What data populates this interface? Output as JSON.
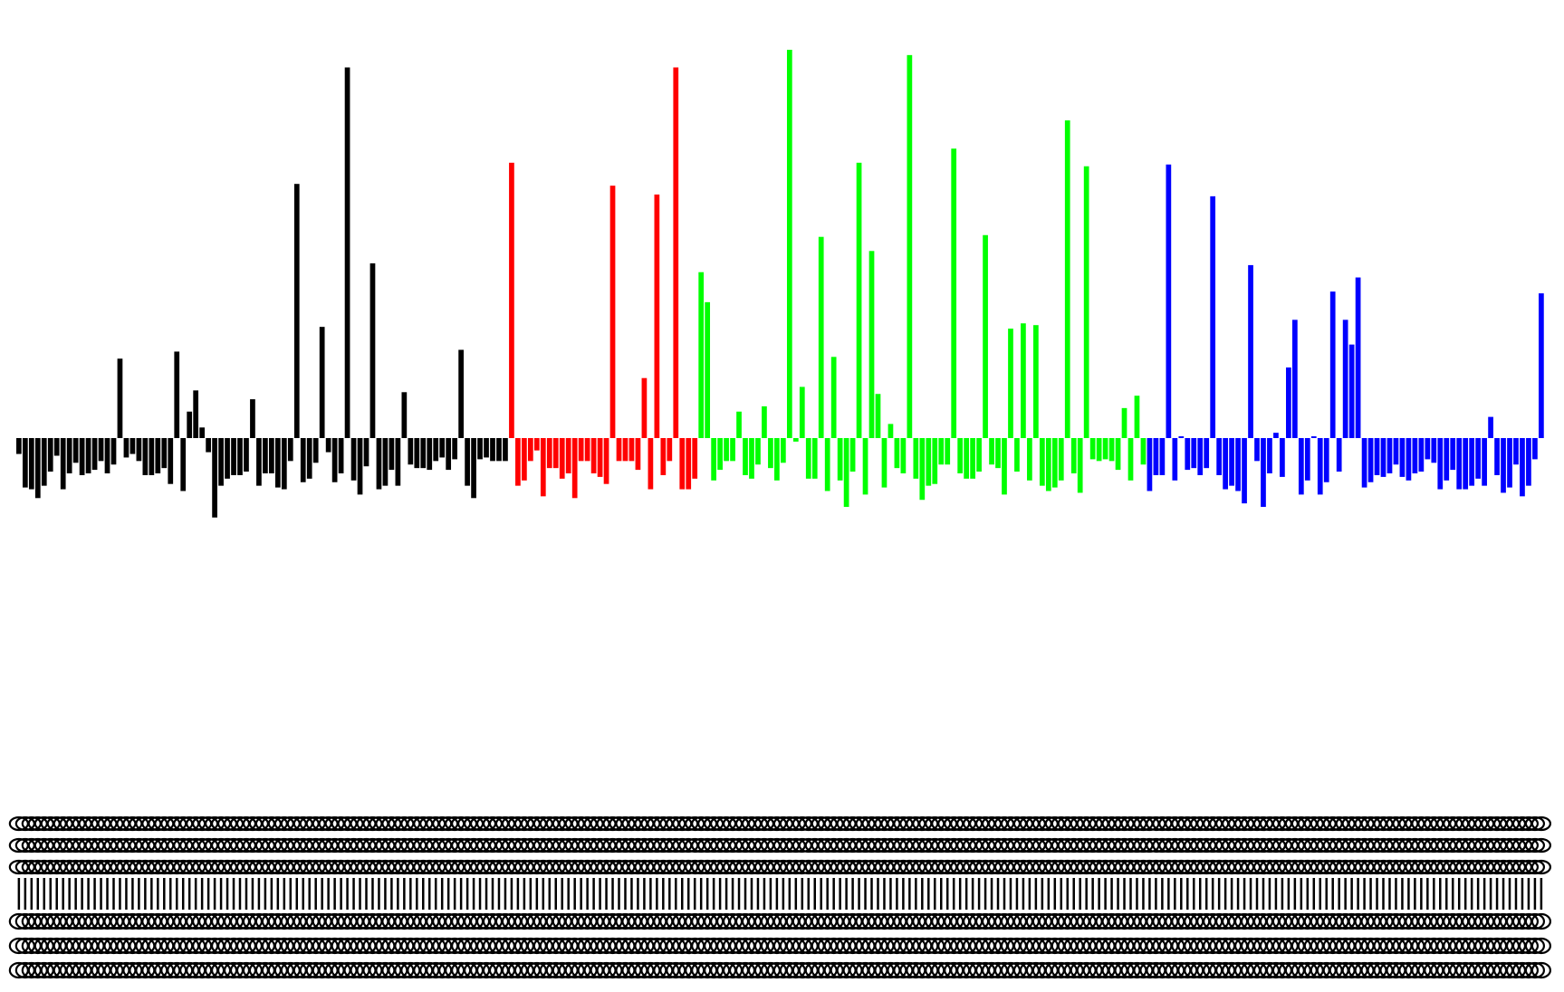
{
  "chart_data": {
    "type": "bar",
    "title": "",
    "xlabel": "",
    "ylabel": "",
    "ylim": [
      -0.45,
      2.1
    ],
    "grid": false,
    "legend": "none",
    "tick_labels_legible": false,
    "group_colors": [
      "#000000",
      "#ff0000",
      "#00ff00",
      "#0000ff"
    ],
    "series": [
      {
        "color": "#000000",
        "values": [
          -0.09,
          -0.28,
          -0.29,
          -0.34,
          -0.27,
          -0.19,
          -0.1,
          -0.29,
          -0.2,
          -0.14,
          -0.21,
          -0.2,
          -0.18,
          -0.13,
          -0.2,
          -0.15,
          0.45,
          -0.11,
          -0.09,
          -0.13,
          -0.21,
          -0.21,
          -0.2,
          -0.17,
          -0.26,
          0.49,
          -0.3,
          0.15,
          0.27,
          0.06,
          -0.08,
          -0.45,
          -0.27,
          -0.23,
          -0.21,
          -0.21,
          -0.19,
          0.22,
          -0.27,
          -0.2,
          -0.2,
          -0.28,
          -0.29,
          -0.13,
          1.44,
          -0.25,
          -0.23,
          -0.14,
          0.63,
          -0.08,
          -0.25,
          -0.2,
          2.1,
          -0.24,
          -0.32,
          -0.16,
          0.99,
          -0.29,
          -0.27,
          -0.18,
          -0.27,
          0.26,
          -0.15,
          -0.17,
          -0.17,
          -0.18,
          -0.13,
          -0.11,
          -0.18,
          -0.12,
          0.5,
          -0.27,
          -0.34,
          -0.12,
          -0.11,
          -0.13,
          -0.13,
          -0.13
        ],
        "category_labels": []
      },
      {
        "color": "#ff0000",
        "values": [
          1.56,
          -0.27,
          -0.24,
          -0.13,
          -0.07,
          -0.33,
          -0.17,
          -0.17,
          -0.23,
          -0.2,
          -0.34,
          -0.13,
          -0.13,
          -0.2,
          -0.22,
          -0.26,
          1.43,
          -0.13,
          -0.13,
          -0.13,
          -0.18,
          0.34,
          -0.29,
          1.38,
          -0.21,
          -0.13,
          2.1,
          -0.29,
          -0.29,
          -0.23
        ],
        "category_labels": []
      },
      {
        "color": "#00ff00",
        "values": [
          0.94,
          0.77,
          -0.24,
          -0.18,
          -0.13,
          -0.13,
          0.15,
          -0.21,
          -0.23,
          -0.15,
          0.18,
          -0.17,
          -0.24,
          -0.14,
          2.2,
          -0.02,
          0.29,
          -0.23,
          -0.23,
          1.14,
          -0.3,
          0.46,
          -0.24,
          -0.39,
          -0.19,
          1.56,
          -0.32,
          1.06,
          0.25,
          -0.28,
          0.08,
          -0.17,
          -0.2,
          2.17,
          -0.23,
          -0.35,
          -0.27,
          -0.26,
          -0.15,
          -0.15,
          1.64,
          -0.2,
          -0.23,
          -0.23,
          -0.19,
          1.15,
          -0.15,
          -0.17,
          -0.32,
          0.62,
          -0.19,
          0.65,
          -0.24,
          0.64,
          -0.27,
          -0.3,
          -0.28,
          -0.24,
          1.8,
          -0.2,
          -0.31,
          1.54,
          -0.12,
          -0.13,
          -0.12,
          -0.13,
          -0.18,
          0.17,
          -0.24,
          0.24,
          -0.15
        ],
        "category_labels": []
      },
      {
        "color": "#0000ff",
        "values": [
          -0.3,
          -0.21,
          -0.21,
          1.55,
          -0.24,
          0.01,
          -0.18,
          -0.17,
          -0.21,
          -0.17,
          1.37,
          -0.21,
          -0.29,
          -0.27,
          -0.3,
          -0.37,
          0.98,
          -0.13,
          -0.39,
          -0.2,
          0.03,
          -0.22,
          0.4,
          0.67,
          -0.32,
          -0.24,
          0.01,
          -0.32,
          -0.25,
          0.83,
          -0.19,
          0.67,
          0.53,
          0.91,
          -0.28,
          -0.25,
          -0.21,
          -0.22,
          -0.2,
          -0.15,
          -0.22,
          -0.24,
          -0.2,
          -0.19,
          -0.12,
          -0.14,
          -0.29,
          -0.24,
          -0.18,
          -0.29,
          -0.29,
          -0.27,
          -0.23,
          -0.27,
          0.12,
          -0.21,
          -0.31,
          -0.28,
          -0.15,
          -0.33,
          -0.27,
          -0.12,
          0.82
        ],
        "category_labels": []
      }
    ]
  }
}
